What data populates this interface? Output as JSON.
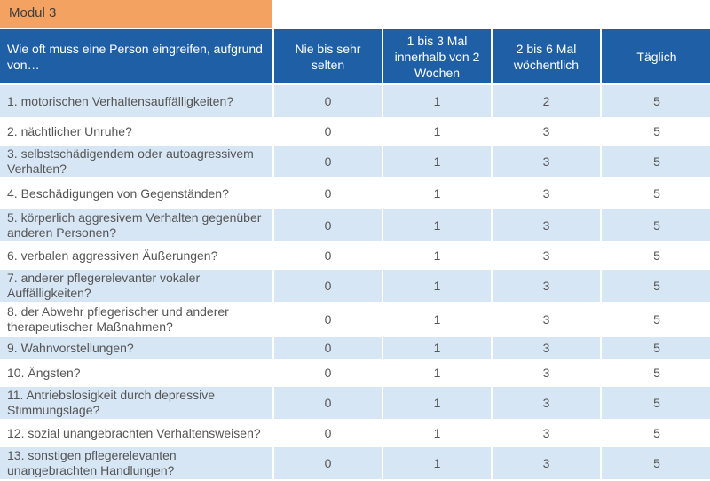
{
  "module": {
    "label": "Modul 3"
  },
  "header": {
    "question": "Wie oft muss eine Person eingreifen, aufgrund von…",
    "columns": [
      "Nie bis sehr selten",
      "1 bis 3 Mal innerhalb von 2 Wochen",
      "2 bis 6 Mal wöchentlich",
      "Täglich"
    ]
  },
  "rows": [
    {
      "label": "1. motorischen Verhaltensauffälligkeiten?",
      "values": [
        "0",
        "1",
        "2",
        "5"
      ]
    },
    {
      "label": "2. nächtlicher Unruhe?",
      "values": [
        "0",
        "1",
        "3",
        "5"
      ]
    },
    {
      "label": "3. selbstschädigendem oder autoagressivem Verhalten?",
      "values": [
        "0",
        "1",
        "3",
        "5"
      ]
    },
    {
      "label": "4. Beschädigungen von Gegenständen?",
      "values": [
        "0",
        "1",
        "3",
        "5"
      ]
    },
    {
      "label": "5. körperlich aggresivem Verhalten gegenüber anderen Personen?",
      "values": [
        "0",
        "1",
        "3",
        "5"
      ]
    },
    {
      "label": "6. verbalen aggressiven Äußerungen?",
      "values": [
        "0",
        "1",
        "3",
        "5"
      ]
    },
    {
      "label": "7. anderer pflegerelevanter vokaler Auffälligkeiten?",
      "values": [
        "0",
        "1",
        "3",
        "5"
      ]
    },
    {
      "label": "8. der Abwehr pflegerischer und anderer therapeutischer Maßnahmen?",
      "values": [
        "0",
        "1",
        "3",
        "5"
      ]
    },
    {
      "label": "9. Wahnvorstellungen?",
      "values": [
        "0",
        "1",
        "3",
        "5"
      ]
    },
    {
      "label": "10. Ängsten?",
      "values": [
        "0",
        "1",
        "3",
        "5"
      ]
    },
    {
      "label": "11. Antriebslosigkeit durch depressive Stimmungslage?",
      "values": [
        "0",
        "1",
        "3",
        "5"
      ]
    },
    {
      "label": "12. sozial unangebrachten Verhaltensweisen?",
      "values": [
        "0",
        "1",
        "3",
        "5"
      ]
    },
    {
      "label": "13. sonstigen pflegerelevanten unangebrachten Handlungen?",
      "values": [
        "0",
        "1",
        "3",
        "5"
      ]
    }
  ]
}
